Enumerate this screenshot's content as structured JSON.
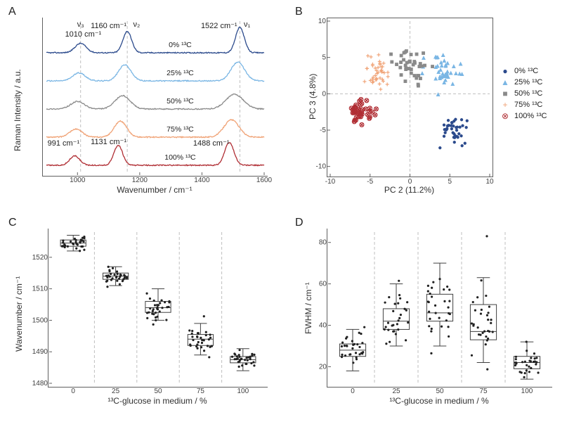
{
  "colors": {
    "c0": "#2b4a8c",
    "c25": "#7ab6e4",
    "c50": "#8a8a8a",
    "c75": "#f0a275",
    "c100": "#b02e34",
    "grid": "#bfbfbf",
    "axis": "#606060",
    "bg": "#ffffff",
    "text": "#202020"
  },
  "panelA": {
    "label": "A",
    "type": "line-spectra-stacked",
    "xlabel": "Wavenumber / cm⁻¹",
    "ylabel": "Raman Intensity / a.u.",
    "xlim": [
      900,
      1600
    ],
    "xtick_step": 200,
    "dashed_v_lines": [
      1010,
      1160,
      1522
    ],
    "series": [
      {
        "name": "0% ¹³C",
        "color_key": "c0",
        "offset": 4
      },
      {
        "name": "25% ¹³C",
        "color_key": "c25",
        "offset": 3
      },
      {
        "name": "50% ¹³C",
        "color_key": "c50",
        "offset": 2
      },
      {
        "name": "75% ¹³C",
        "color_key": "c75",
        "offset": 1
      },
      {
        "name": "100% ¹³C",
        "color_key": "c100",
        "offset": 0
      }
    ],
    "annotations": {
      "nu3": "ν₃",
      "nu2": "ν₂",
      "nu1": "ν₁",
      "p1010": "1010 cm⁻¹",
      "p1160": "1160 cm⁻¹",
      "p1522": "1522 cm⁻¹",
      "p991": "991 cm⁻¹",
      "p1131": "1131 cm⁻¹",
      "p1488": "1488 cm⁻¹"
    }
  },
  "panelB": {
    "label": "B",
    "type": "scatter",
    "xlabel": "PC 2 (11.2%)",
    "ylabel": "PC 3 (4.8%)",
    "xlim": [
      -10,
      10
    ],
    "ylim": [
      -11,
      10
    ],
    "xtick_step": 5,
    "ytick_step": 5,
    "groups": [
      {
        "name": "0% ¹³C",
        "color_key": "c0",
        "marker": "●",
        "centroid": [
          5.5,
          -4.8
        ],
        "spread": [
          2.0,
          1.8
        ],
        "n": 40
      },
      {
        "name": "25% ¹³C",
        "color_key": "c25",
        "marker": "▲",
        "centroid": [
          4.0,
          3.5
        ],
        "spread": [
          2.2,
          2.3
        ],
        "n": 40
      },
      {
        "name": "50% ¹³C",
        "color_key": "c50",
        "marker": "■",
        "centroid": [
          0.0,
          4.0
        ],
        "spread": [
          2.3,
          2.6
        ],
        "n": 40
      },
      {
        "name": "75% ¹³C",
        "color_key": "c75",
        "marker": "+",
        "centroid": [
          -4.0,
          3.0
        ],
        "spread": [
          1.8,
          2.2
        ],
        "n": 40
      },
      {
        "name": "100% ¹³C",
        "color_key": "c100",
        "marker": "⊗",
        "centroid": [
          -6.0,
          -2.5
        ],
        "spread": [
          1.6,
          1.8
        ],
        "n": 40
      }
    ]
  },
  "panelC": {
    "label": "C",
    "type": "box-jitter",
    "xlabel": "¹³C-glucose in medium / %",
    "ylabel": "Wavenumber / cm⁻¹",
    "categories": [
      0,
      25,
      50,
      75,
      100
    ],
    "ylim": [
      1480,
      1528
    ],
    "ytick_step": 10,
    "boxes": [
      {
        "q1": 1523.5,
        "med": 1524.5,
        "q3": 1525.5,
        "lo": 1522.0,
        "hi": 1527.0,
        "mean": 1524.5,
        "sd": 1.2,
        "n": 32
      },
      {
        "q1": 1513.0,
        "med": 1514.0,
        "q3": 1515.0,
        "lo": 1511.0,
        "hi": 1517.0,
        "mean": 1514.0,
        "sd": 1.4,
        "n": 32
      },
      {
        "q1": 1502.5,
        "med": 1504.0,
        "q3": 1506.0,
        "lo": 1500.0,
        "hi": 1510.0,
        "mean": 1504.2,
        "sd": 2.0,
        "n": 32
      },
      {
        "q1": 1492.0,
        "med": 1494.0,
        "q3": 1495.5,
        "lo": 1489.0,
        "hi": 1499.0,
        "mean": 1493.8,
        "sd": 2.0,
        "n": 32
      },
      {
        "q1": 1486.5,
        "med": 1487.5,
        "q3": 1488.5,
        "lo": 1484.0,
        "hi": 1491.0,
        "mean": 1487.5,
        "sd": 1.3,
        "n": 32
      }
    ]
  },
  "panelD": {
    "label": "D",
    "type": "box-jitter",
    "xlabel": "¹³C-glucose in medium / %",
    "ylabel": "FWHM / cm⁻¹",
    "categories": [
      0,
      25,
      50,
      75,
      100
    ],
    "ylim": [
      12,
      85
    ],
    "ytick_step": 20,
    "boxes": [
      {
        "q1": 25,
        "med": 28,
        "q3": 31,
        "lo": 18,
        "hi": 38,
        "mean": 28,
        "sd": 4.5,
        "n": 30
      },
      {
        "q1": 38,
        "med": 42,
        "q3": 48,
        "lo": 30,
        "hi": 60,
        "mean": 43,
        "sd": 7.0,
        "n": 30
      },
      {
        "q1": 42,
        "med": 46,
        "q3": 55,
        "lo": 30,
        "hi": 70,
        "mean": 49,
        "sd": 9.0,
        "n": 30
      },
      {
        "q1": 33,
        "med": 37,
        "q3": 50,
        "lo": 22,
        "hi": 63,
        "mean": 42,
        "sd": 11.0,
        "n": 30
      },
      {
        "q1": 19,
        "med": 22,
        "q3": 25,
        "lo": 14,
        "hi": 32,
        "mean": 22,
        "sd": 4.0,
        "n": 30
      }
    ]
  }
}
